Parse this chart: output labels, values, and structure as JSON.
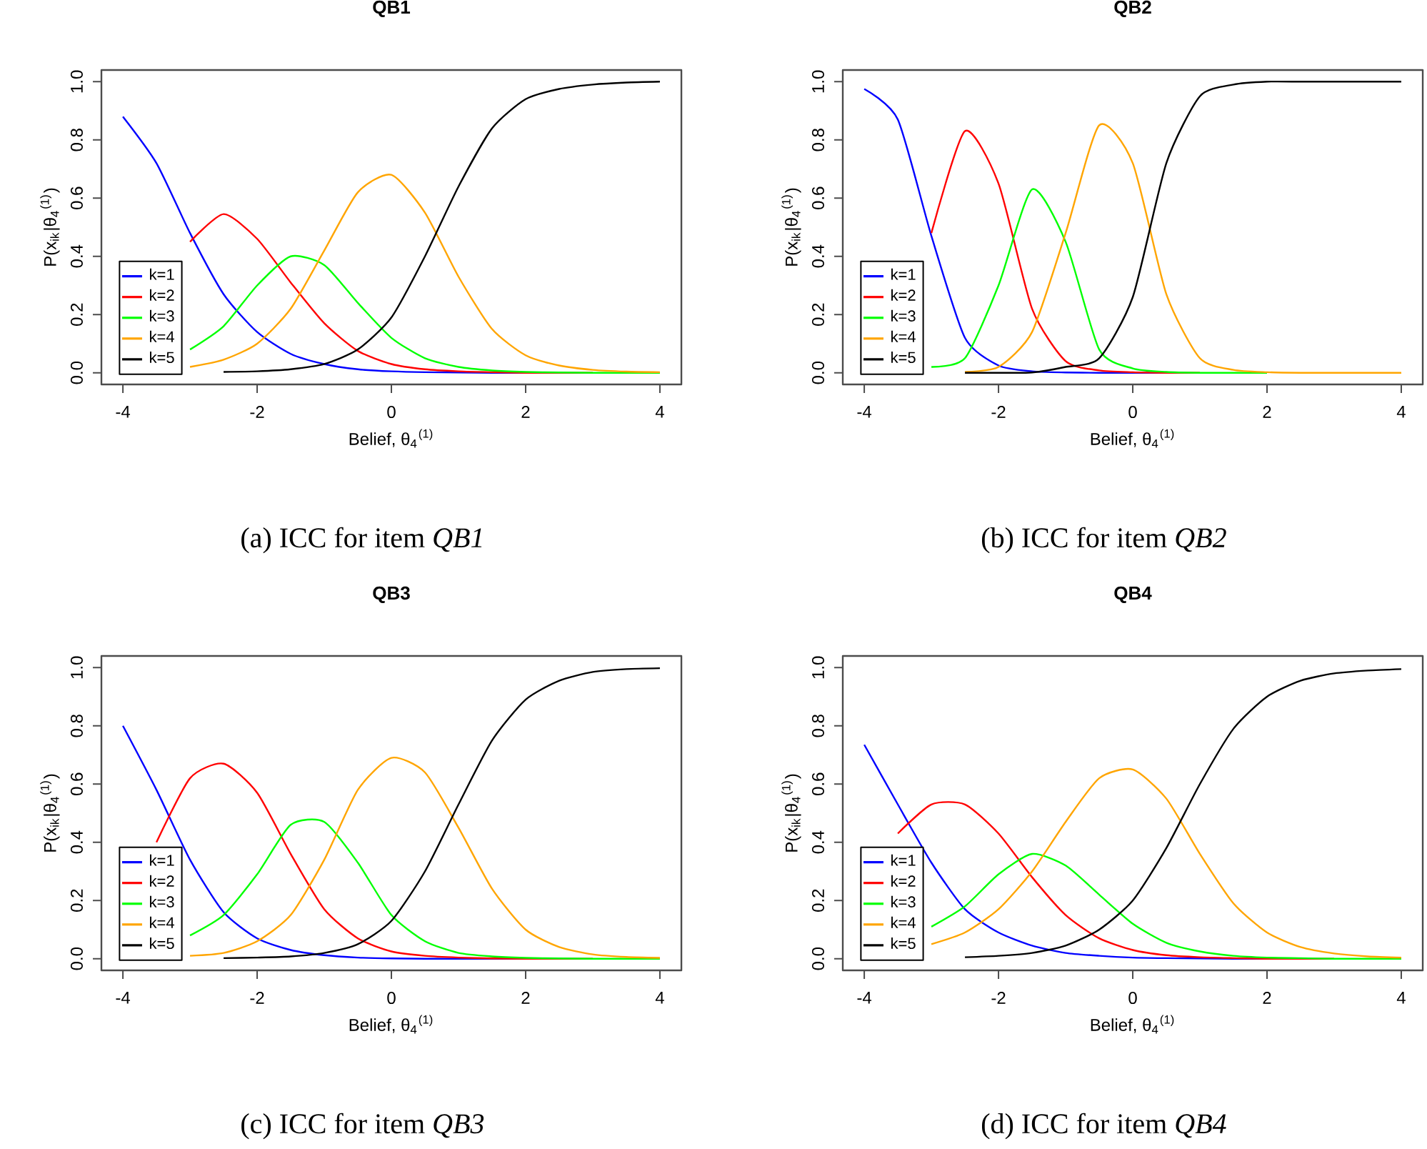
{
  "chart_data": [
    {
      "type": "line",
      "title": "QB1",
      "xlabel": "Belief, θ$_{4}$$^{(1)}$",
      "ylabel": "P(x$_{ik}$|θ$_{4}$$^{(1)}$)",
      "xlim": [
        -4.32,
        4.32
      ],
      "ylim": [
        -0.04,
        1.04
      ],
      "xticks": [
        -4,
        -2,
        0,
        2,
        4
      ],
      "yticks": [
        {
          "value": 0,
          "label": "0.0"
        },
        {
          "value": 0.2,
          "label": "0.2"
        },
        {
          "value": 0.4,
          "label": "0.4"
        },
        {
          "value": 0.6,
          "label": "0.6"
        },
        {
          "value": 0.8,
          "label": "0.8"
        },
        {
          "value": 1,
          "label": "1.0"
        }
      ],
      "legend": "bottom left",
      "annotations": [
        "(a) ICC for item *QB1*"
      ],
      "x": [
        -4,
        -3.5,
        -3,
        -2.5,
        -2,
        -1.5,
        -1,
        -0.5,
        0,
        0.5,
        1,
        1.5,
        2,
        2.5,
        3,
        3.5,
        4
      ],
      "series": [
        {
          "name": "k=1",
          "color": "#0000ff",
          "values": [
            0.88,
            0.72,
            0.48,
            0.27,
            0.14,
            0.065,
            0.03,
            0.012,
            0.005,
            0.002,
            0.001,
            0,
            0,
            null,
            null,
            null,
            null
          ]
        },
        {
          "name": "k=2",
          "color": "#ff0000",
          "values": [
            null,
            null,
            0.45,
            0.545,
            0.46,
            0.31,
            0.17,
            0.075,
            0.03,
            0.012,
            0.005,
            0.002,
            0,
            0,
            0,
            null,
            null
          ]
        },
        {
          "name": "k=3",
          "color": "#00ff00",
          "values": [
            null,
            null,
            0.08,
            0.16,
            0.3,
            0.4,
            0.37,
            0.24,
            0.12,
            0.05,
            0.02,
            0.008,
            0.003,
            0.001,
            0,
            0,
            0
          ]
        },
        {
          "name": "k=4",
          "color": "#ffa500",
          "values": [
            null,
            null,
            0.02,
            0.045,
            0.1,
            0.22,
            0.42,
            0.62,
            0.68,
            0.55,
            0.33,
            0.15,
            0.06,
            0.025,
            0.01,
            0.004,
            0.002
          ]
        },
        {
          "name": "k=5",
          "color": "#000000",
          "values": [
            null,
            null,
            null,
            0.003,
            0.005,
            0.012,
            0.03,
            0.08,
            0.19,
            0.4,
            0.64,
            0.84,
            0.94,
            0.975,
            0.99,
            0.997,
            1.0
          ]
        }
      ]
    },
    {
      "type": "line",
      "title": "QB2",
      "xlabel": "Belief, θ$_{4}$$^{(1)}$",
      "ylabel": "P(x$_{ik}$|θ$_{4}$$^{(1)}$)",
      "xlim": [
        -4.32,
        4.32
      ],
      "ylim": [
        -0.04,
        1.04
      ],
      "xticks": [
        -4,
        -2,
        0,
        2,
        4
      ],
      "yticks": [
        {
          "value": 0,
          "label": "0.0"
        },
        {
          "value": 0.2,
          "label": "0.2"
        },
        {
          "value": 0.4,
          "label": "0.4"
        },
        {
          "value": 0.6,
          "label": "0.6"
        },
        {
          "value": 0.8,
          "label": "0.8"
        },
        {
          "value": 1,
          "label": "1.0"
        }
      ],
      "legend": "bottom left",
      "annotations": [
        "(b) ICC for item *QB2*"
      ],
      "x": [
        -4,
        -3.5,
        -3,
        -2.5,
        -2,
        -1.5,
        -1,
        -0.5,
        0,
        0.5,
        1,
        1.5,
        2,
        2.5,
        3,
        3.5,
        4
      ],
      "series": [
        {
          "name": "k=1",
          "color": "#0000ff",
          "values": [
            0.975,
            0.87,
            0.47,
            0.12,
            0.025,
            0.005,
            0.001,
            0,
            0,
            0,
            null,
            null,
            null,
            null,
            null,
            null,
            null
          ]
        },
        {
          "name": "k=2",
          "color": "#ff0000",
          "values": [
            null,
            null,
            0.48,
            0.83,
            0.65,
            0.22,
            0.04,
            0.008,
            0.002,
            0,
            0,
            null,
            null,
            null,
            null,
            null,
            null
          ]
        },
        {
          "name": "k=3",
          "color": "#00ff00",
          "values": [
            null,
            null,
            0.02,
            0.05,
            0.3,
            0.63,
            0.45,
            0.08,
            0.015,
            0.003,
            0,
            0,
            0,
            null,
            null,
            null,
            null
          ]
        },
        {
          "name": "k=4",
          "color": "#ffa500",
          "values": [
            null,
            null,
            null,
            0.003,
            0.02,
            0.14,
            0.48,
            0.85,
            0.72,
            0.27,
            0.05,
            0.01,
            0.002,
            0,
            0,
            0,
            0
          ]
        },
        {
          "name": "k=5",
          "color": "#000000",
          "values": [
            null,
            null,
            null,
            0,
            0,
            0.001,
            0.02,
            0.05,
            0.26,
            0.72,
            0.95,
            0.99,
            1.0,
            1.0,
            1.0,
            1.0,
            1.0
          ]
        }
      ]
    },
    {
      "type": "line",
      "title": "QB3",
      "xlabel": "Belief, θ$_{4}$$^{(1)}$",
      "ylabel": "P(x$_{ik}$|θ$_{4}$$^{(1)}$)",
      "xlim": [
        -4.32,
        4.32
      ],
      "ylim": [
        -0.04,
        1.04
      ],
      "xticks": [
        -4,
        -2,
        0,
        2,
        4
      ],
      "yticks": [
        {
          "value": 0,
          "label": "0.0"
        },
        {
          "value": 0.2,
          "label": "0.2"
        },
        {
          "value": 0.4,
          "label": "0.4"
        },
        {
          "value": 0.6,
          "label": "0.6"
        },
        {
          "value": 0.8,
          "label": "0.8"
        },
        {
          "value": 1,
          "label": "1.0"
        }
      ],
      "legend": "bottom left",
      "annotations": [
        "(c) ICC for item *QB3*"
      ],
      "x": [
        -4,
        -3.5,
        -3,
        -2.5,
        -2,
        -1.5,
        -1,
        -0.5,
        0,
        0.5,
        1,
        1.5,
        2,
        2.5,
        3,
        3.5,
        4
      ],
      "series": [
        {
          "name": "k=1",
          "color": "#0000ff",
          "values": [
            0.8,
            0.58,
            0.34,
            0.16,
            0.07,
            0.03,
            0.012,
            0.004,
            0.001,
            0,
            0,
            0,
            0,
            null,
            null,
            null,
            null
          ]
        },
        {
          "name": "k=2",
          "color": "#ff0000",
          "values": [
            null,
            0.4,
            0.62,
            0.67,
            0.57,
            0.36,
            0.17,
            0.07,
            0.025,
            0.01,
            0.004,
            0.001,
            0,
            0,
            0,
            null,
            null
          ]
        },
        {
          "name": "k=3",
          "color": "#00ff00",
          "values": [
            null,
            null,
            0.08,
            0.15,
            0.29,
            0.46,
            0.47,
            0.33,
            0.15,
            0.06,
            0.02,
            0.008,
            0.003,
            0.001,
            0,
            0,
            0
          ]
        },
        {
          "name": "k=4",
          "color": "#ffa500",
          "values": [
            null,
            null,
            0.01,
            0.02,
            0.06,
            0.15,
            0.34,
            0.58,
            0.69,
            0.64,
            0.45,
            0.24,
            0.1,
            0.04,
            0.015,
            0.006,
            0.003
          ]
        },
        {
          "name": "k=5",
          "color": "#000000",
          "values": [
            null,
            null,
            null,
            0.002,
            0.004,
            0.008,
            0.02,
            0.05,
            0.13,
            0.3,
            0.53,
            0.75,
            0.89,
            0.955,
            0.985,
            0.995,
            0.998
          ]
        }
      ]
    },
    {
      "type": "line",
      "title": "QB4",
      "xlabel": "Belief, θ$_{4}$$^{(1)}$",
      "ylabel": "P(x$_{ik}$|θ$_{4}$$^{(1)}$)",
      "xlim": [
        -4.32,
        4.32
      ],
      "ylim": [
        -0.04,
        1.04
      ],
      "xticks": [
        -4,
        -2,
        0,
        2,
        4
      ],
      "yticks": [
        {
          "value": 0,
          "label": "0.0"
        },
        {
          "value": 0.2,
          "label": "0.2"
        },
        {
          "value": 0.4,
          "label": "0.4"
        },
        {
          "value": 0.6,
          "label": "0.6"
        },
        {
          "value": 0.8,
          "label": "0.8"
        },
        {
          "value": 1,
          "label": "1.0"
        }
      ],
      "legend": "bottom left",
      "annotations": [
        "(d) ICC for item *QB4*"
      ],
      "x": [
        -4,
        -3.5,
        -3,
        -2.5,
        -2,
        -1.5,
        -1,
        -0.5,
        0,
        0.5,
        1,
        1.5,
        2,
        2.5,
        3,
        3.5,
        4
      ],
      "series": [
        {
          "name": "k=1",
          "color": "#0000ff",
          "values": [
            0.735,
            0.53,
            0.33,
            0.17,
            0.09,
            0.045,
            0.02,
            0.01,
            0.004,
            0.002,
            0.001,
            0,
            0,
            null,
            null,
            null,
            null
          ]
        },
        {
          "name": "k=2",
          "color": "#ff0000",
          "values": [
            null,
            0.43,
            0.53,
            0.53,
            0.43,
            0.28,
            0.15,
            0.07,
            0.03,
            0.012,
            0.005,
            0.002,
            0,
            0,
            0,
            null,
            null
          ]
        },
        {
          "name": "k=3",
          "color": "#00ff00",
          "values": [
            null,
            null,
            0.11,
            0.18,
            0.29,
            0.36,
            0.32,
            0.22,
            0.12,
            0.055,
            0.025,
            0.01,
            0.004,
            0.002,
            0,
            0,
            0
          ]
        },
        {
          "name": "k=4",
          "color": "#ffa500",
          "values": [
            null,
            null,
            0.05,
            0.09,
            0.17,
            0.3,
            0.47,
            0.62,
            0.65,
            0.55,
            0.36,
            0.19,
            0.09,
            0.04,
            0.018,
            0.008,
            0.004
          ]
        },
        {
          "name": "k=5",
          "color": "#000000",
          "values": [
            null,
            null,
            null,
            0.005,
            0.01,
            0.02,
            0.045,
            0.1,
            0.2,
            0.38,
            0.6,
            0.79,
            0.9,
            0.955,
            0.98,
            0.99,
            0.995
          ]
        }
      ]
    }
  ]
}
